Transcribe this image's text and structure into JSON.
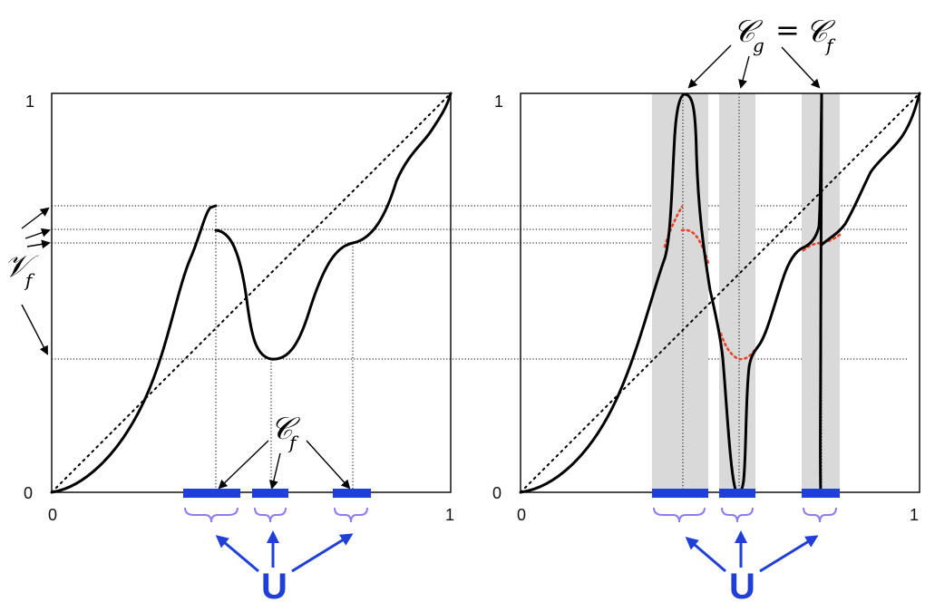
{
  "left_panel": {
    "y_axis_ticks": [
      "0",
      "1"
    ],
    "x_axis_ticks": [
      "0",
      "1"
    ],
    "label_Vf": {
      "script": "𝒱",
      "sub": "f"
    },
    "label_Cf": {
      "script": "𝒞",
      "sub": "f"
    },
    "label_U": "U"
  },
  "right_panel": {
    "y_axis_ticks": [
      "0",
      "1"
    ],
    "x_axis_ticks": [
      "0",
      "1"
    ],
    "label_Cg_eq_Cf": {
      "left_script": "𝒞",
      "left_sub": "g",
      "equals": "=",
      "right_script": "𝒞",
      "right_sub": "f"
    },
    "label_U": "U"
  },
  "colors": {
    "curve": "#000000",
    "interval_bar": "#1f3fd8",
    "brace": "#8c7cf0",
    "arrow_U": "#1f3fd8",
    "label_U": "#1f3fd8",
    "shaded_band": "#d9d9d9",
    "original_curve_dotted": "#e8442a"
  },
  "icons": {
    "arrow": "arrow-icon",
    "brace": "curly-brace-icon"
  }
}
